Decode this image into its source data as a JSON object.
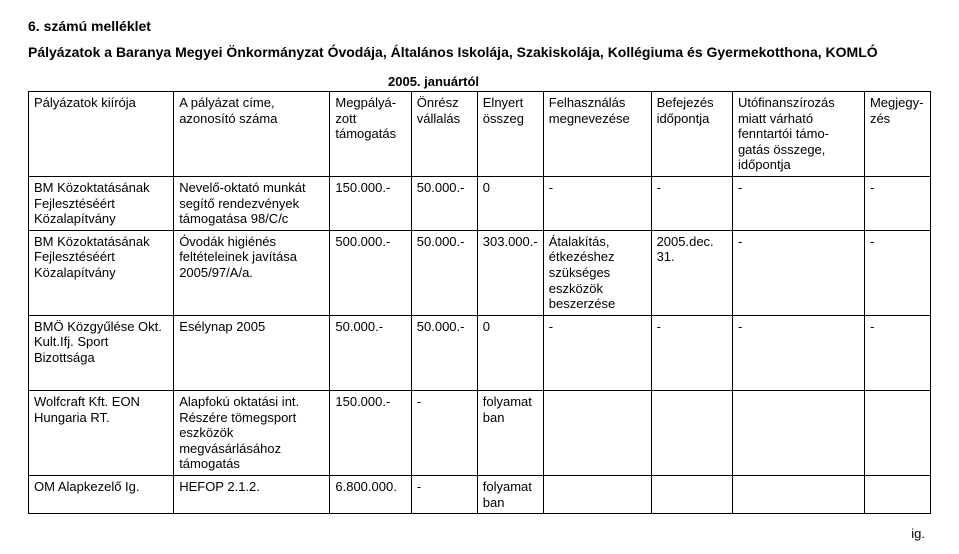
{
  "title1": "6. számú melléklet",
  "title2": "Pályázatok a Baranya Megyei Önkormányzat Óvodája, Általános Iskolája, Szakiskolája, Kollégiuma és Gyermekotthona, KOMLÓ",
  "yearLine": "2005. januártól",
  "headers": {
    "c1": "Pályázatok kiírója",
    "c2": "A pályázat címe, azonosító száma",
    "c3": "Megpályá-zott támogatás",
    "c4": "Önrész vállalás",
    "c5": "Elnyert összeg",
    "c6": "Felhasználás megnevezése",
    "c7": "Befejezés időpontja",
    "c8": "Utófinanszírozás miatt várható fenntartói támo-gatás összege, időpontja",
    "c9": "Megjegy-zés"
  },
  "rows": [
    {
      "c1": "BM Közoktatásának Fejlesztéséért Közalapítvány",
      "c2": "Nevelő-oktató munkát segítő rendezvények támogatása 98/C/c",
      "c3": "150.000.-",
      "c4": "50.000.-",
      "c5": "0",
      "c6": "-",
      "c7": "-",
      "c8": "-",
      "c9": "-"
    },
    {
      "c1": "BM Közoktatásának Fejlesztéséért Közalapítvány",
      "c2": "Óvodák higiénés feltételeinek javítása 2005/97/A/a.",
      "c3": "500.000.-",
      "c4": "50.000.-",
      "c5": "303.000.-",
      "c6": "Átalakítás, étkezéshez szükséges eszközök beszerzése",
      "c7": "2005.dec. 31.",
      "c8": "-",
      "c9": "-"
    },
    {
      "c1": "BMÖ Közgyűlése Okt. Kult.Ifj. Sport Bizottsága",
      "c2": "Esélynap 2005",
      "c3": "50.000.-",
      "c4": "50.000.-",
      "c5": "0",
      "c6": "-",
      "c7": "-",
      "c8": "-",
      "c9": "-"
    }
  ],
  "rows2": [
    {
      "c1": "Wolfcraft Kft. EON Hungaria RT.",
      "c2": "Alapfokú oktatási int. Részére tömegsport eszközök megvásárlásához támogatás",
      "c3": "150.000.-",
      "c4": "-",
      "c5": "folyamatban",
      "c6": "",
      "c7": "",
      "c8": "",
      "c9": ""
    },
    {
      "c1": "OM Alapkezelő Ig.",
      "c2": "HEFOP 2.1.2.",
      "c3": "6.800.000.",
      "c4": "-",
      "c5": "folyamatban",
      "c6": "",
      "c7": "",
      "c8": "",
      "c9": ""
    }
  ],
  "footer": "ig."
}
